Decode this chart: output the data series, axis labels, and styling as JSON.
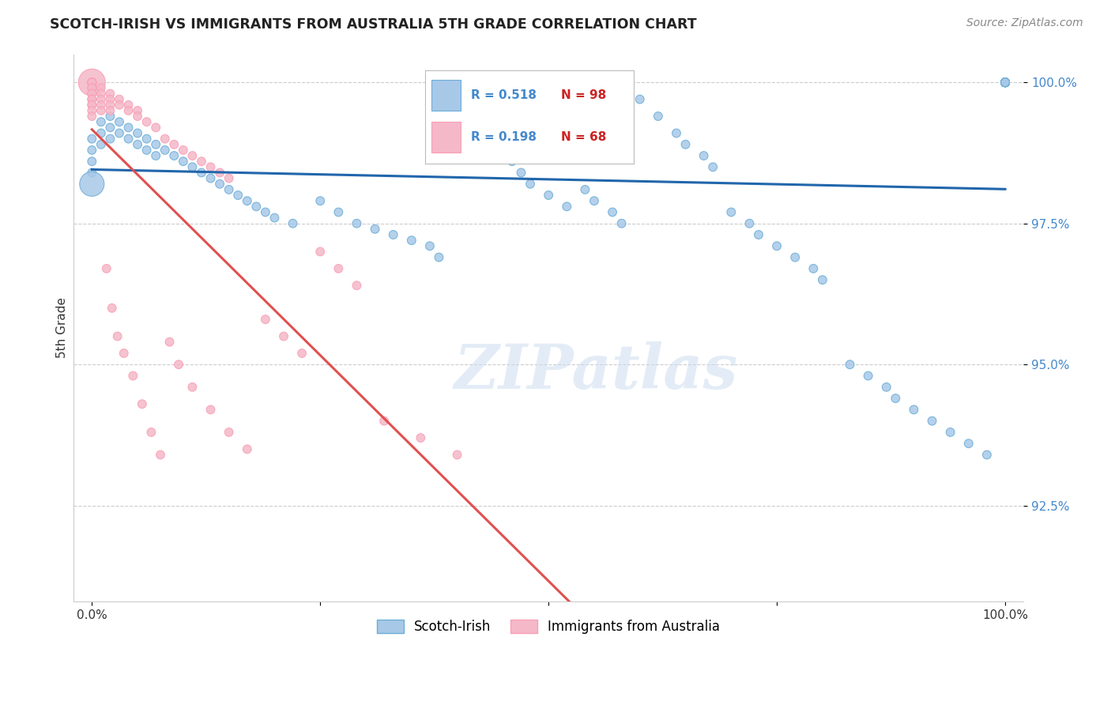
{
  "title": "SCOTCH-IRISH VS IMMIGRANTS FROM AUSTRALIA 5TH GRADE CORRELATION CHART",
  "source": "Source: ZipAtlas.com",
  "ylabel": "5th Grade",
  "R_blue": 0.518,
  "N_blue": 98,
  "R_pink": 0.198,
  "N_pink": 68,
  "blue_color": "#a8c8e8",
  "blue_edge_color": "#6baed6",
  "pink_color": "#f4b8c8",
  "pink_edge_color": "#fa9fb5",
  "blue_line_color": "#2166ac",
  "pink_line_color": "#e05050",
  "grid_color": "#cccccc",
  "ytick_color": "#4488cc",
  "legend_blue_label": "Scotch-Irish",
  "legend_pink_label": "Immigrants from Australia",
  "watermark": "ZIPatlas",
  "xlim": [
    -0.02,
    1.02
  ],
  "ylim": [
    0.908,
    1.005
  ],
  "yticks": [
    0.925,
    0.95,
    0.975,
    1.0
  ],
  "ytick_labels": [
    "92.5%",
    "95.0%",
    "97.5%",
    "100.0%"
  ],
  "blue_x": [
    0.0,
    0.0,
    0.0,
    0.0,
    0.0,
    0.01,
    0.01,
    0.01,
    0.02,
    0.02,
    0.02,
    0.03,
    0.03,
    0.04,
    0.04,
    0.05,
    0.05,
    0.06,
    0.06,
    0.07,
    0.07,
    0.08,
    0.09,
    0.1,
    0.11,
    0.12,
    0.13,
    0.14,
    0.15,
    0.16,
    0.17,
    0.18,
    0.19,
    0.2,
    0.22,
    0.25,
    0.27,
    0.29,
    0.31,
    0.33,
    0.35,
    0.37,
    0.38,
    0.4,
    0.42,
    0.44,
    0.45,
    0.46,
    0.47,
    0.48,
    0.5,
    0.52,
    0.54,
    0.55,
    0.57,
    0.58,
    0.6,
    0.62,
    0.64,
    0.65,
    0.67,
    0.68,
    0.7,
    0.72,
    0.73,
    0.75,
    0.77,
    0.79,
    0.8,
    0.83,
    0.85,
    0.87,
    0.88,
    0.9,
    0.92,
    0.94,
    0.96,
    0.98,
    1.0,
    1.0,
    1.0,
    1.0,
    1.0,
    1.0,
    1.0,
    1.0,
    1.0,
    1.0,
    1.0,
    1.0,
    1.0,
    1.0,
    1.0,
    1.0,
    1.0,
    1.0,
    1.0,
    1.0
  ],
  "blue_y": [
    0.99,
    0.988,
    0.986,
    0.984,
    0.982,
    0.993,
    0.991,
    0.989,
    0.994,
    0.992,
    0.99,
    0.993,
    0.991,
    0.992,
    0.99,
    0.991,
    0.989,
    0.99,
    0.988,
    0.989,
    0.987,
    0.988,
    0.987,
    0.986,
    0.985,
    0.984,
    0.983,
    0.982,
    0.981,
    0.98,
    0.979,
    0.978,
    0.977,
    0.976,
    0.975,
    0.979,
    0.977,
    0.975,
    0.974,
    0.973,
    0.972,
    0.971,
    0.969,
    0.996,
    0.993,
    0.99,
    0.988,
    0.986,
    0.984,
    0.982,
    0.98,
    0.978,
    0.981,
    0.979,
    0.977,
    0.975,
    0.997,
    0.994,
    0.991,
    0.989,
    0.987,
    0.985,
    0.977,
    0.975,
    0.973,
    0.971,
    0.969,
    0.967,
    0.965,
    0.95,
    0.948,
    0.946,
    0.944,
    0.942,
    0.94,
    0.938,
    0.936,
    0.934,
    1.0,
    1.0,
    1.0,
    1.0,
    1.0,
    1.0,
    1.0,
    1.0,
    1.0,
    1.0,
    1.0,
    1.0,
    1.0,
    1.0,
    1.0,
    1.0,
    1.0,
    1.0,
    1.0,
    1.0
  ],
  "blue_sizes": [
    60,
    60,
    60,
    60,
    60,
    60,
    60,
    60,
    60,
    60,
    60,
    60,
    60,
    60,
    60,
    60,
    60,
    60,
    60,
    60,
    60,
    60,
    60,
    60,
    60,
    60,
    60,
    60,
    60,
    60,
    60,
    60,
    60,
    60,
    60,
    60,
    60,
    60,
    60,
    60,
    60,
    60,
    60,
    60,
    60,
    60,
    60,
    60,
    60,
    60,
    60,
    60,
    60,
    60,
    60,
    60,
    60,
    60,
    60,
    60,
    60,
    60,
    60,
    60,
    60,
    60,
    60,
    60,
    60,
    60,
    60,
    60,
    60,
    60,
    60,
    60,
    60,
    60,
    60,
    60,
    60,
    60,
    60,
    60,
    60,
    60,
    60,
    60,
    60,
    60,
    60,
    60,
    60,
    60,
    60,
    60,
    60,
    60
  ],
  "blue_big_idx": 4,
  "blue_big_size": 500,
  "pink_x": [
    0.0,
    0.0,
    0.0,
    0.0,
    0.0,
    0.0,
    0.0,
    0.0,
    0.0,
    0.0,
    0.0,
    0.0,
    0.0,
    0.0,
    0.0,
    0.0,
    0.0,
    0.0,
    0.0,
    0.0,
    0.01,
    0.01,
    0.01,
    0.01,
    0.01,
    0.02,
    0.02,
    0.02,
    0.02,
    0.03,
    0.03,
    0.04,
    0.04,
    0.05,
    0.05,
    0.06,
    0.07,
    0.08,
    0.09,
    0.1,
    0.11,
    0.12,
    0.13,
    0.14,
    0.15,
    0.016,
    0.022,
    0.028,
    0.035,
    0.045,
    0.055,
    0.065,
    0.075,
    0.085,
    0.095,
    0.11,
    0.13,
    0.15,
    0.17,
    0.19,
    0.21,
    0.23,
    0.25,
    0.27,
    0.29,
    0.32,
    0.36,
    0.4
  ],
  "pink_y": [
    1.0,
    1.0,
    1.0,
    1.0,
    1.0,
    1.0,
    1.0,
    1.0,
    1.0,
    1.0,
    0.999,
    0.999,
    0.998,
    0.998,
    0.997,
    0.997,
    0.996,
    0.996,
    0.995,
    0.994,
    0.999,
    0.998,
    0.997,
    0.996,
    0.995,
    0.998,
    0.997,
    0.996,
    0.995,
    0.997,
    0.996,
    0.996,
    0.995,
    0.995,
    0.994,
    0.993,
    0.992,
    0.99,
    0.989,
    0.988,
    0.987,
    0.986,
    0.985,
    0.984,
    0.983,
    0.967,
    0.96,
    0.955,
    0.952,
    0.948,
    0.943,
    0.938,
    0.934,
    0.954,
    0.95,
    0.946,
    0.942,
    0.938,
    0.935,
    0.958,
    0.955,
    0.952,
    0.97,
    0.967,
    0.964,
    0.94,
    0.937,
    0.934
  ],
  "pink_sizes": [
    60,
    60,
    60,
    60,
    60,
    60,
    60,
    60,
    60,
    60,
    60,
    60,
    60,
    60,
    60,
    60,
    60,
    60,
    60,
    60,
    60,
    60,
    60,
    60,
    60,
    60,
    60,
    60,
    60,
    60,
    60,
    60,
    60,
    60,
    60,
    60,
    60,
    60,
    60,
    60,
    60,
    60,
    60,
    60,
    60,
    60,
    60,
    60,
    60,
    60,
    60,
    60,
    60,
    60,
    60,
    60,
    60,
    60,
    60,
    60,
    60,
    60,
    60,
    60,
    60,
    60,
    60,
    60
  ],
  "pink_big_idx": 0,
  "pink_big_size": 600
}
